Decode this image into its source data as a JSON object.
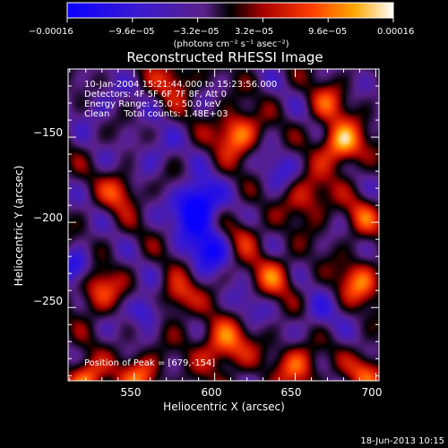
{
  "colorbar": {
    "ticks": [
      "−0.00016",
      "−9.6e−05",
      "−3.2e−05",
      "3.2e−05",
      "9.6e−05",
      "0.00016"
    ],
    "tick_values": [
      -0.00016,
      -9.6e-05,
      -3.2e-05,
      3.2e-05,
      9.6e-05,
      0.00016
    ],
    "range": [
      -0.00016,
      0.00016
    ],
    "units": "(photons cm⁻² s⁻¹ asec⁻²)"
  },
  "chart_data": {
    "type": "heatmap",
    "title": "Reconstructed RHESSI Image",
    "xlabel": "Heliocentric X (arcsec)",
    "ylabel": "Heliocentric Y (arcsec)",
    "xlim": [
      509,
      702
    ],
    "ylim": [
      -293,
      -110
    ],
    "x_ticks": [
      550,
      600,
      650,
      700
    ],
    "y_ticks": [
      -150,
      -200,
      -250
    ],
    "x_tick_labels": [
      "550",
      "600",
      "650",
      "700"
    ],
    "y_tick_labels": [
      "−150",
      "−200",
      "−250"
    ],
    "annotations": [
      "10-Jan-2004 15:21:44.000 to 15:23:56.000",
      "Detectors: 4F 5F 6F 7F 8F, Att 0",
      "Energy Range: 25.0 - 50.0 keV",
      "Clean     Total counts: 1.48E+03"
    ],
    "peak_label": "Position of Peak = [679,-154]",
    "peak": [
      679,
      -154
    ],
    "sources": [
      {
        "x": 679,
        "y": -154,
        "amp": 0.00016,
        "r": 9
      },
      {
        "x": 614,
        "y": -148,
        "amp": 0.00014,
        "r": 9
      },
      {
        "x": 520,
        "y": -292,
        "amp": 0.00014,
        "r": 8
      },
      {
        "x": 554,
        "y": -290,
        "amp": 0.00011,
        "r": 9
      },
      {
        "x": 606,
        "y": -272,
        "amp": 0.00012,
        "r": 11
      },
      {
        "x": 652,
        "y": -284,
        "amp": 0.00011,
        "r": 9
      },
      {
        "x": 690,
        "y": -235,
        "amp": 0.00011,
        "r": 9
      },
      {
        "x": 636,
        "y": -232,
        "amp": 9e-05,
        "r": 9
      },
      {
        "x": 528,
        "y": -240,
        "amp": 0.0001,
        "r": 9
      },
      {
        "x": 541,
        "y": -182,
        "amp": 9e-05,
        "r": 8
      },
      {
        "x": 577,
        "y": -244,
        "amp": 0.0001,
        "r": 8
      },
      {
        "x": 658,
        "y": -185,
        "amp": 9e-05,
        "r": 10
      },
      {
        "x": 575,
        "y": -116,
        "amp": 8e-05,
        "r": 9
      },
      {
        "x": 695,
        "y": -288,
        "amp": 0.0001,
        "r": 8
      },
      {
        "x": 692,
        "y": -197,
        "amp": 8e-05,
        "r": 8
      },
      {
        "x": 618,
        "y": -208,
        "amp": 7e-05,
        "r": 8
      },
      {
        "x": 670,
        "y": -130,
        "amp": 8e-05,
        "r": 8
      },
      {
        "x": 586,
        "y": -195,
        "amp": -0.00012,
        "r": 9
      },
      {
        "x": 597,
        "y": -215,
        "amp": -0.00012,
        "r": 9
      },
      {
        "x": 515,
        "y": -226,
        "amp": -0.0001,
        "r": 7
      },
      {
        "x": 557,
        "y": -252,
        "amp": -0.0001,
        "r": 7
      },
      {
        "x": 591,
        "y": -185,
        "amp": -0.0001,
        "r": 8
      },
      {
        "x": 560,
        "y": -160,
        "amp": -5e-05,
        "r": 10
      },
      {
        "x": 640,
        "y": -170,
        "amp": -5e-05,
        "r": 9
      },
      {
        "x": 664,
        "y": -256,
        "amp": -5e-05,
        "r": 9
      },
      {
        "x": 530,
        "y": -130,
        "amp": -4e-05,
        "r": 10
      },
      {
        "x": 620,
        "y": -250,
        "amp": -5e-05,
        "r": 8
      }
    ]
  },
  "footer": {
    "date": "18-Jun-2013 10:15"
  }
}
